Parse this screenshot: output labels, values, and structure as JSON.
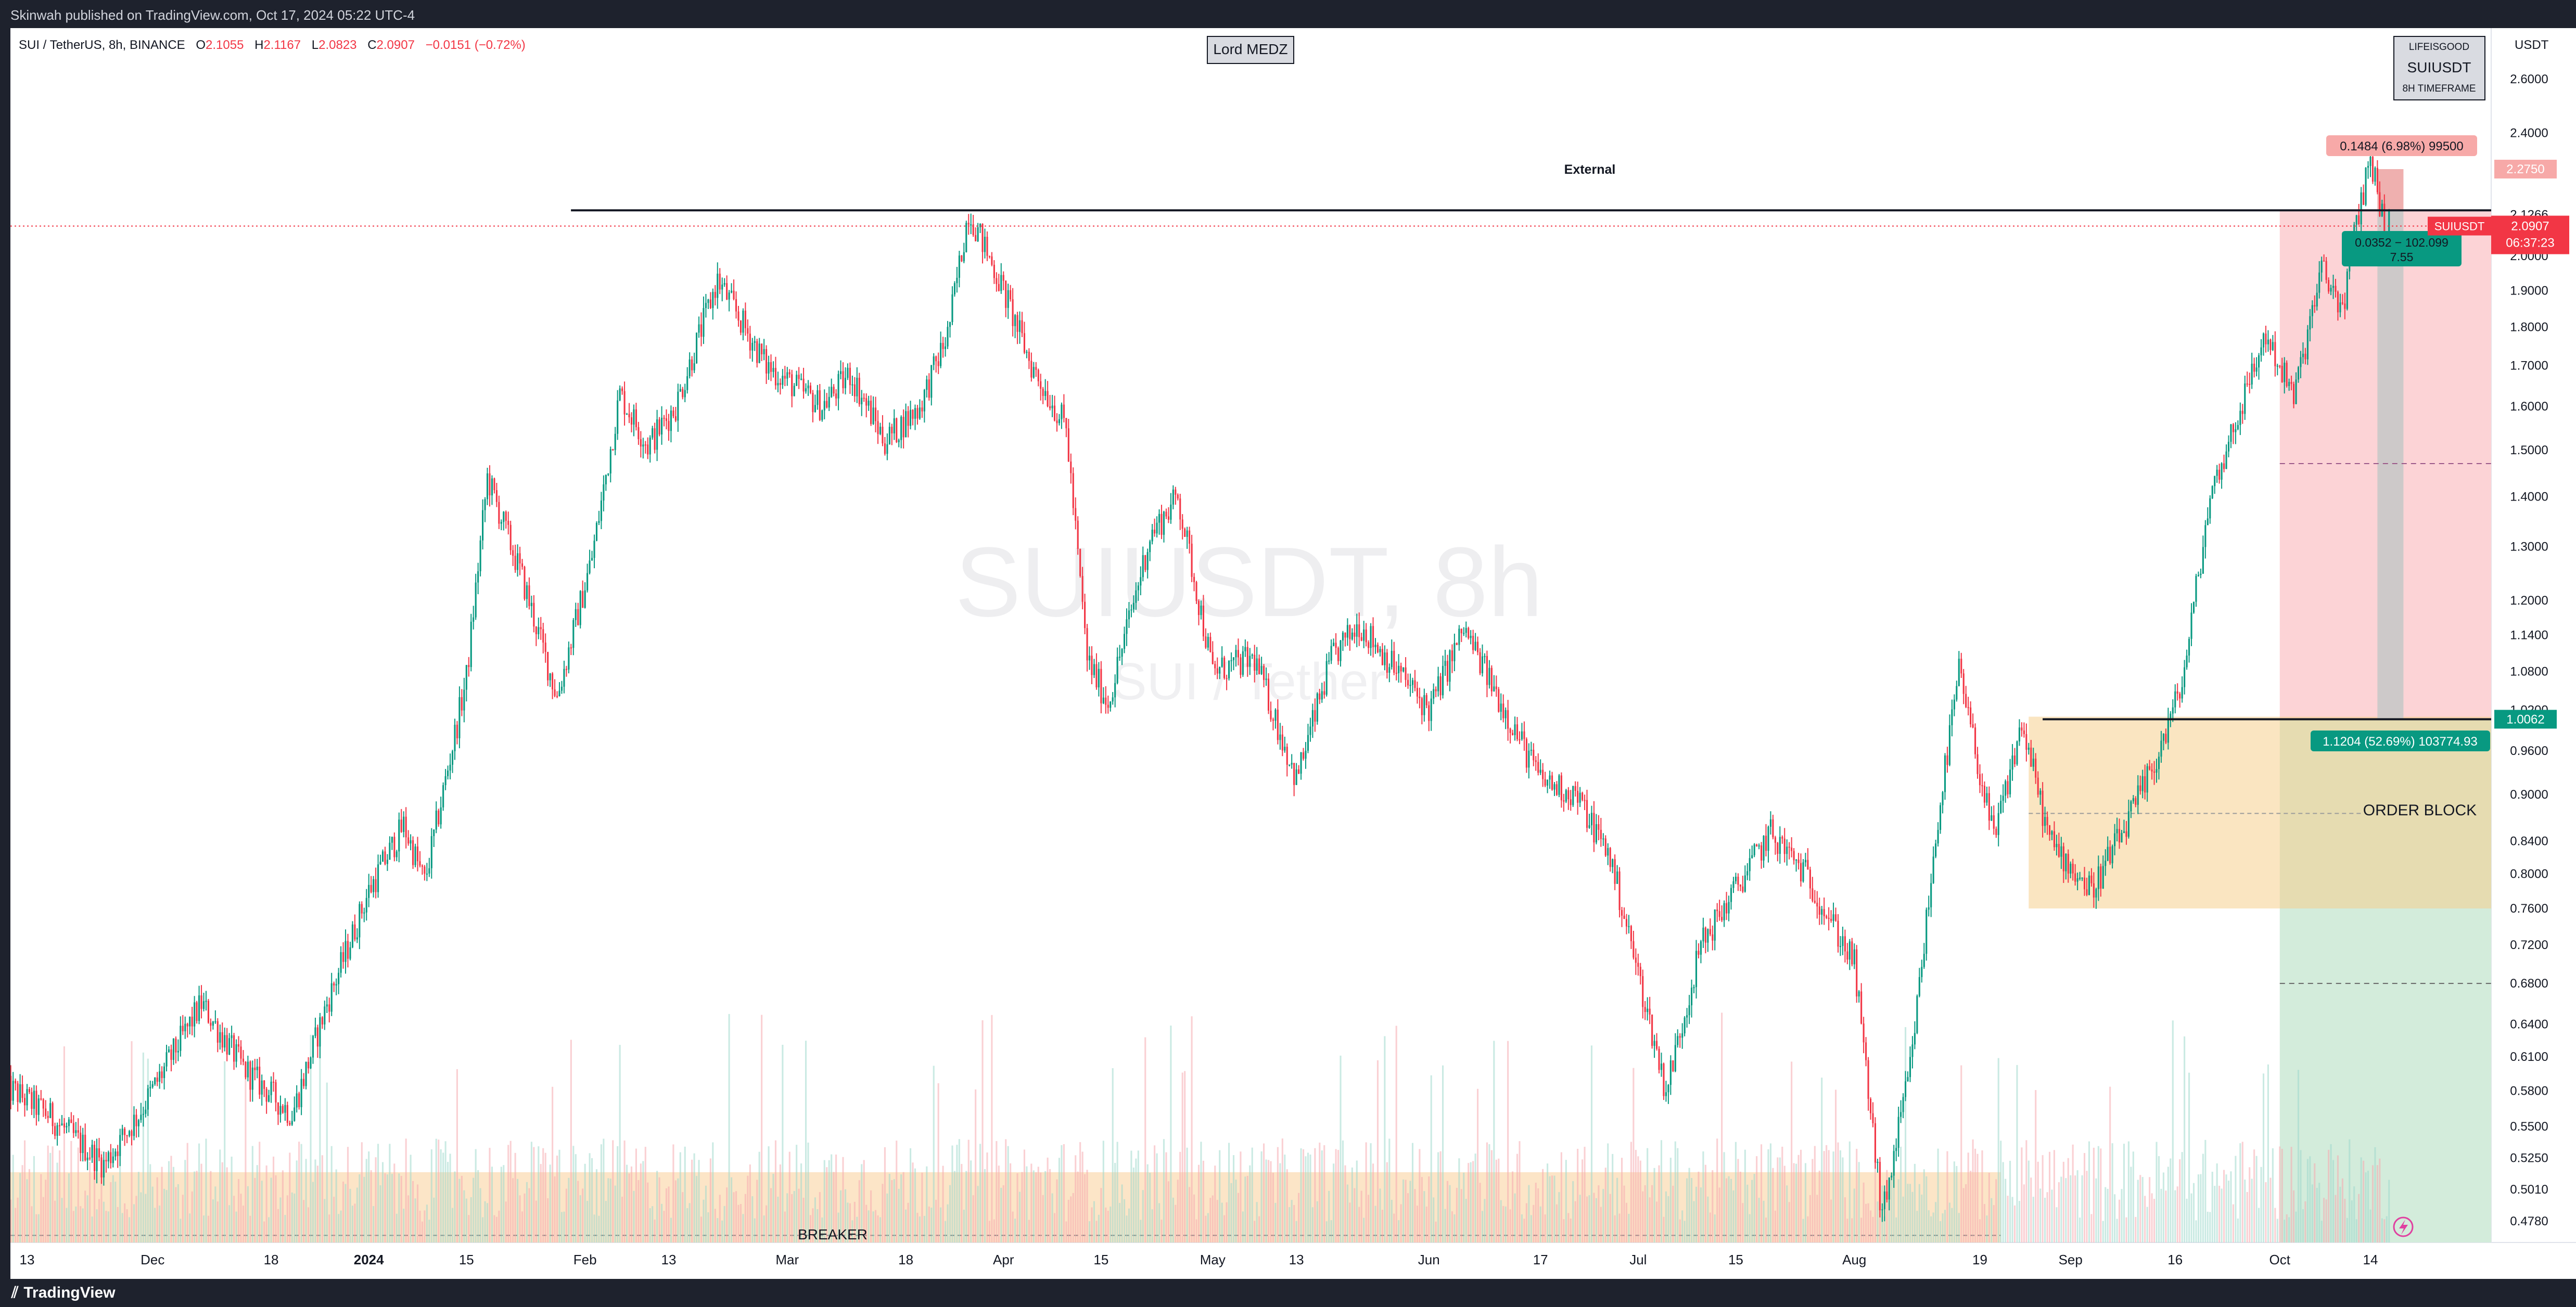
{
  "header": {
    "published_text": "Skinwah published on TradingView.com, Oct 17, 2024 05:22 UTC-4"
  },
  "footer": {
    "brand": "TradingView"
  },
  "legend": {
    "symbol": "SUI / TetherUS, 8h, BINANCE",
    "o_label": "O",
    "o_value": "2.1055",
    "h_label": "H",
    "h_value": "2.1167",
    "l_label": "L",
    "l_value": "2.0823",
    "c_label": "C",
    "c_value": "2.0907",
    "change": "−0.0151 (−0.72%)"
  },
  "watermark": {
    "line1": "SUIUSDT, 8h",
    "line2": "SUI / Tether"
  },
  "author_box": "Lord MEDZ",
  "info_box": {
    "line1": "LIFEISGOOD",
    "line2": "SUIUSDT",
    "line3": "8H TIMEFRAME"
  },
  "annotations": {
    "external": "External",
    "order_block": "ORDER BLOCK",
    "breaker": "BREAKER"
  },
  "position_labels": {
    "target": "0.1484 (6.98%) 99500",
    "stop": "1.1204 (52.69%) 103774.93",
    "pnl_line1": "0.0352 − 102.099",
    "pnl_line2": "7.55"
  },
  "price_axis": {
    "unit": "USDT",
    "ticks": [
      "2.6000",
      "2.4000",
      "2.1266",
      "2.0000",
      "1.9000",
      "1.8000",
      "1.7000",
      "1.6000",
      "1.5000",
      "1.4000",
      "1.3000",
      "1.2000",
      "1.1400",
      "1.0800",
      "1.0200",
      "0.9600",
      "0.9000",
      "0.8400",
      "0.8000",
      "0.7600",
      "0.7200",
      "0.6800",
      "0.6400",
      "0.6100",
      "0.5800",
      "0.5500",
      "0.5250",
      "0.5010",
      "0.4780"
    ],
    "badge_target": "2.2750",
    "badge_symbol": "SUIUSDT",
    "badge_price": "2.0907",
    "badge_countdown": "06:37:23",
    "badge_entry": "1.0062",
    "colors": {
      "target": "#f7a9a8",
      "price": "#f23645",
      "entry": "#089981"
    }
  },
  "time_axis": {
    "ticks": [
      "13",
      "Dec",
      "18",
      "2024",
      "15",
      "Feb",
      "13",
      "Mar",
      "18",
      "Apr",
      "15",
      "May",
      "13",
      "Jun",
      "17",
      "Jul",
      "15",
      "Aug",
      "19",
      "Sep",
      "16",
      "Oct",
      "14"
    ]
  },
  "chart_data": {
    "type": "candlestick",
    "symbol": "SUI / TetherUS",
    "interval": "8h",
    "exchange": "BINANCE",
    "scale": "log",
    "ylim": [
      0.465,
      2.75
    ],
    "x_range": [
      "2023-11-13",
      "2024-10-31"
    ],
    "anchors": [
      [
        "2023-11-11",
        0.58
      ],
      [
        "2023-11-16",
        0.56
      ],
      [
        "2023-11-24",
        0.52
      ],
      [
        "2023-11-29",
        0.56
      ],
      [
        "2023-12-08",
        0.66
      ],
      [
        "2023-12-14",
        0.6
      ],
      [
        "2023-12-21",
        0.56
      ],
      [
        "2023-12-26",
        0.66
      ],
      [
        "2024-01-01",
        0.78
      ],
      [
        "2024-01-06",
        0.86
      ],
      [
        "2024-01-09",
        0.79
      ],
      [
        "2024-01-15",
        1.07
      ],
      [
        "2024-01-18",
        1.44
      ],
      [
        "2024-01-23",
        1.24
      ],
      [
        "2024-01-28",
        1.04
      ],
      [
        "2024-02-02",
        1.28
      ],
      [
        "2024-02-06",
        1.63
      ],
      [
        "2024-02-10",
        1.51
      ],
      [
        "2024-02-14",
        1.6
      ],
      [
        "2024-02-20",
        1.93
      ],
      [
        "2024-02-27",
        1.7
      ],
      [
        "2024-03-06",
        1.6
      ],
      [
        "2024-03-10",
        1.68
      ],
      [
        "2024-03-15",
        1.52
      ],
      [
        "2024-03-20",
        1.6
      ],
      [
        "2024-03-24",
        1.78
      ],
      [
        "2024-03-27",
        2.14
      ],
      [
        "2024-04-01",
        1.9
      ],
      [
        "2024-04-05",
        1.7
      ],
      [
        "2024-04-10",
        1.55
      ],
      [
        "2024-04-13",
        1.1
      ],
      [
        "2024-04-16",
        1.03
      ],
      [
        "2024-04-22",
        1.32
      ],
      [
        "2024-04-26",
        1.4
      ],
      [
        "2024-05-01",
        1.08
      ],
      [
        "2024-05-07",
        1.1
      ],
      [
        "2024-05-13",
        0.92
      ],
      [
        "2024-05-18",
        1.1
      ],
      [
        "2024-05-22",
        1.16
      ],
      [
        "2024-06-01",
        1.02
      ],
      [
        "2024-06-06",
        1.15
      ],
      [
        "2024-06-10",
        1.06
      ],
      [
        "2024-06-17",
        0.92
      ],
      [
        "2024-06-22",
        0.9
      ],
      [
        "2024-06-27",
        0.82
      ],
      [
        "2024-07-05",
        0.58
      ],
      [
        "2024-07-10",
        0.72
      ],
      [
        "2024-07-20",
        0.85
      ],
      [
        "2024-07-25",
        0.8
      ],
      [
        "2024-08-01",
        0.7
      ],
      [
        "2024-08-05",
        0.48
      ],
      [
        "2024-08-09",
        0.6
      ],
      [
        "2024-08-13",
        0.87
      ],
      [
        "2024-08-16",
        1.08
      ],
      [
        "2024-08-21",
        0.84
      ],
      [
        "2024-08-25",
        1.0
      ],
      [
        "2024-08-29",
        0.84
      ],
      [
        "2024-09-04",
        0.78
      ],
      [
        "2024-09-09",
        0.86
      ],
      [
        "2024-09-13",
        0.94
      ],
      [
        "2024-09-17",
        1.06
      ],
      [
        "2024-09-21",
        1.4
      ],
      [
        "2024-09-25",
        1.58
      ],
      [
        "2024-09-29",
        1.78
      ],
      [
        "2024-10-03",
        1.62
      ],
      [
        "2024-10-07",
        1.96
      ],
      [
        "2024-10-10",
        1.85
      ],
      [
        "2024-10-12",
        2.1
      ],
      [
        "2024-10-14",
        2.32
      ],
      [
        "2024-10-16",
        2.09
      ]
    ],
    "levels": {
      "external": 2.14,
      "entry": 1.0062,
      "target": 2.275,
      "last": 2.0907
    },
    "zones": [
      {
        "name": "ORDER BLOCK",
        "from": "2024-08-26",
        "to": "2024-10-31",
        "top": 1.01,
        "bottom": 0.76,
        "mid": 0.875
      },
      {
        "name": "BREAKER",
        "from": "2023-11-10",
        "to": "2024-08-22",
        "top": 0.514,
        "bottom": 0.465
      }
    ],
    "position": {
      "from": "2024-10-01",
      "to": "2024-10-31",
      "entry": 1.0062,
      "stop_top": 2.14,
      "target_bottom": 0.465
    },
    "colors": {
      "up": "#089981",
      "down": "#f23645"
    }
  }
}
